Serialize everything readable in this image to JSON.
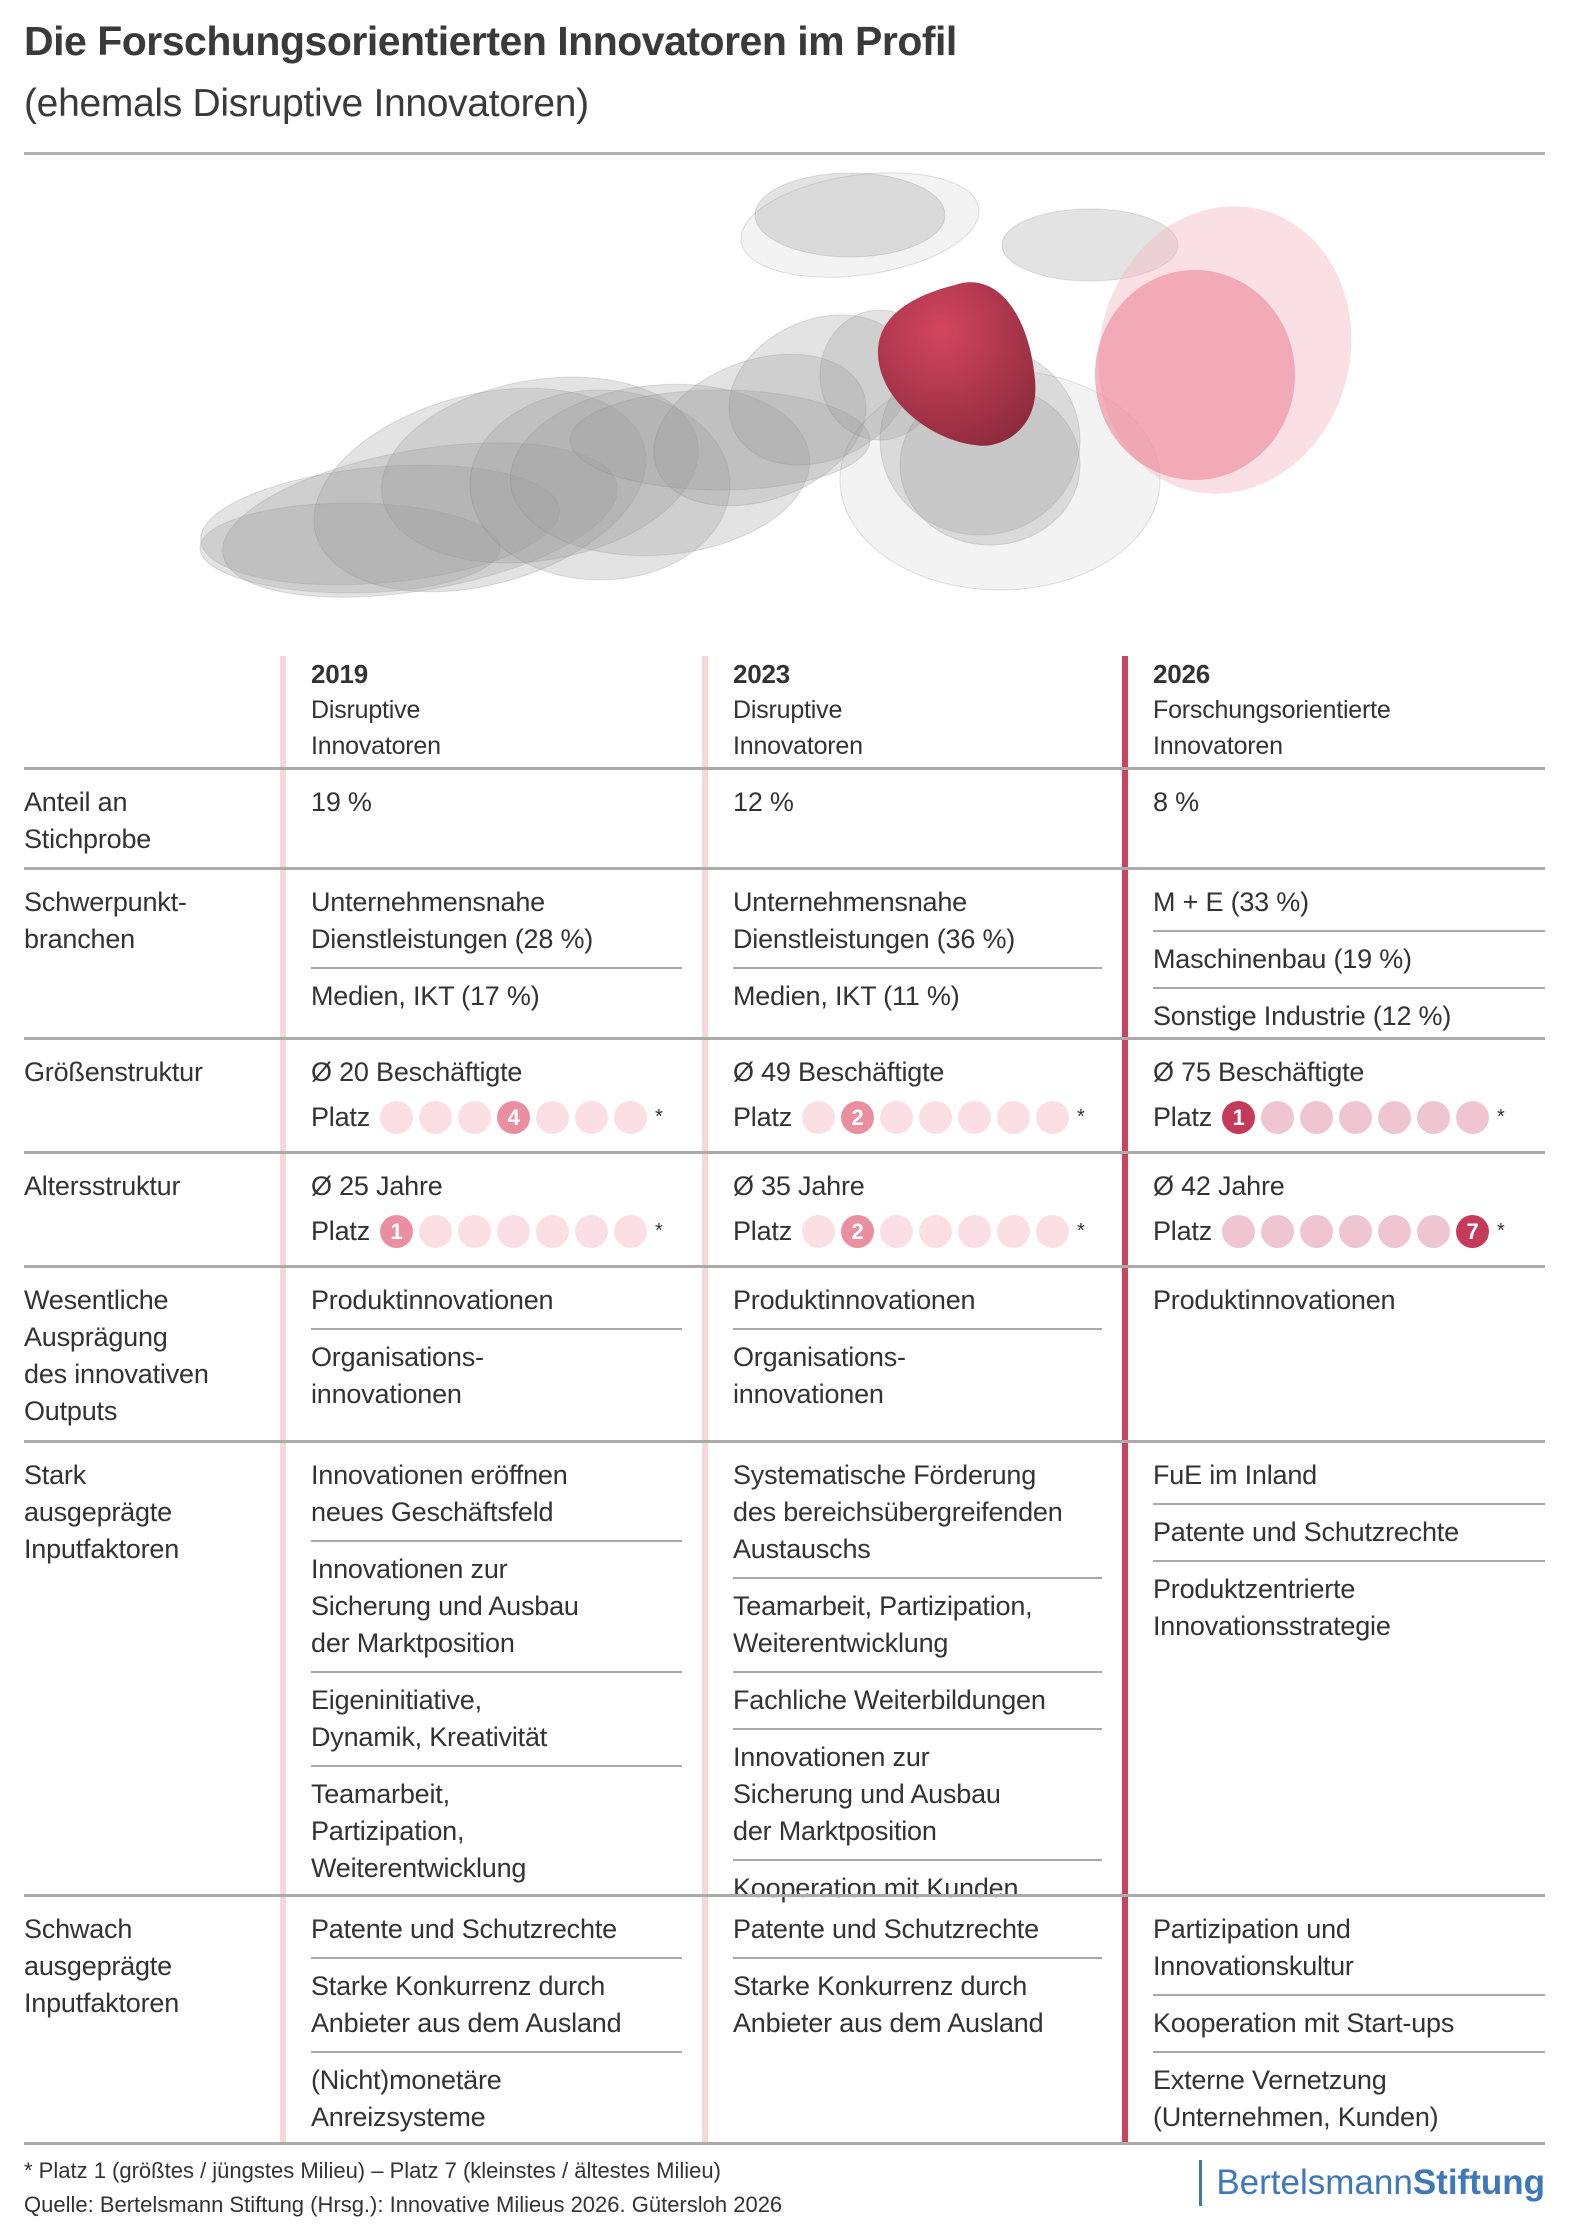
{
  "title": "Die Forschungsorientierten Innovatoren im Profil",
  "subtitle": "(ehemals Disruptive Innovatoren)",
  "colors": {
    "accent": "#c8435f",
    "light_pink": "#f9d6dc",
    "rule": "#ababab",
    "brand_blue": "#3f78b8"
  },
  "columns": [
    {
      "year": "2019",
      "name": "Disruptive\nInnovatoren"
    },
    {
      "year": "2023",
      "name": "Disruptive\nInnovatoren"
    },
    {
      "year": "2026",
      "name": "Forschungsorientierte\nInnovatoren"
    }
  ],
  "rows": [
    {
      "label": "Anteil an\nStichprobe",
      "cells": [
        {
          "items": [
            "19 %"
          ]
        },
        {
          "items": [
            "12 %"
          ]
        },
        {
          "items": [
            "8 %"
          ]
        }
      ]
    },
    {
      "label": "Schwerpunkt-\nbranchen",
      "cells": [
        {
          "items": [
            "Unternehmensnahe\nDienstleistungen (28 %)",
            "Medien, IKT (17 %)"
          ]
        },
        {
          "items": [
            "Unternehmensnahe\nDienstleistungen (36 %)",
            "Medien, IKT (11 %)"
          ]
        },
        {
          "items": [
            "M + E (33 %)",
            "Maschinenbau (19 %)",
            "Sonstige Industrie (12 %)"
          ]
        }
      ]
    },
    {
      "label": "Größenstruktur",
      "cells": [
        {
          "stat": "Ø 20 Beschäftigte",
          "platz": "Platz",
          "rank": 4,
          "total": 7,
          "asterisk": "*"
        },
        {
          "stat": "Ø 49 Beschäftigte",
          "platz": "Platz",
          "rank": 2,
          "total": 7,
          "asterisk": "*"
        },
        {
          "stat": "Ø 75 Beschäftigte",
          "platz": "Platz",
          "rank": 1,
          "total": 7,
          "asterisk": "*"
        }
      ]
    },
    {
      "label": "Altersstruktur",
      "cells": [
        {
          "stat": "Ø 25 Jahre",
          "platz": "Platz",
          "rank": 1,
          "total": 7,
          "asterisk": "*"
        },
        {
          "stat": "Ø 35 Jahre",
          "platz": "Platz",
          "rank": 2,
          "total": 7,
          "asterisk": "*"
        },
        {
          "stat": "Ø 42 Jahre",
          "platz": "Platz",
          "rank": 7,
          "total": 7,
          "asterisk": "*"
        }
      ]
    },
    {
      "label": "Wesentliche\nAusprägung\ndes innovativen\nOutputs",
      "cells": [
        {
          "items": [
            "Produktinnovationen",
            "Organisations-\ninnovationen"
          ]
        },
        {
          "items": [
            "Produktinnovationen",
            "Organisations-\ninnovationen"
          ]
        },
        {
          "items": [
            "Produktinnovationen"
          ]
        }
      ]
    },
    {
      "label": "Stark\nausgeprägte\nInputfaktoren",
      "cells": [
        {
          "items": [
            "Innovationen eröffnen\nneues Geschäftsfeld",
            "Innovationen zur\nSicherung und Ausbau\nder Marktposition",
            "Eigeninitiative,\nDynamik, Kreativität",
            "Teamarbeit,\nPartizipation,\nWeiterentwicklung"
          ]
        },
        {
          "items": [
            "Systematische Förderung\ndes bereichsübergreifenden\nAustauschs",
            "Teamarbeit, Partizipation,\nWeiterentwicklung",
            "Fachliche Weiterbildungen",
            "Innovationen zur\nSicherung und Ausbau\nder Marktposition",
            "Kooperation mit Kunden"
          ]
        },
        {
          "items": [
            "FuE im Inland",
            "Patente und Schutzrechte",
            "Produktzentrierte\nInnovationsstrategie"
          ]
        }
      ]
    },
    {
      "label": "Schwach\nausgeprägte\nInputfaktoren",
      "cells": [
        {
          "items": [
            "Patente und Schutzrechte",
            "Starke Konkurrenz durch\nAnbieter aus dem Ausland",
            "(Nicht)monetäre\nAnreizsysteme"
          ]
        },
        {
          "items": [
            "Patente und Schutzrechte",
            "Starke Konkurrenz durch\nAnbieter aus dem Ausland"
          ]
        },
        {
          "items": [
            "Partizipation und\nInnovationskultur",
            "Kooperation mit Start-ups",
            "Externe Vernetzung\n(Unternehmen, Kunden)"
          ]
        }
      ]
    }
  ],
  "footnote": "* Platz 1 (größtes / jüngstes Milieu) – Platz 7 (kleinstes / ältestes Milieu)",
  "source": "Quelle: Bertelsmann Stiftung (Hrsg.): Innovative Milieus 2026. Gütersloh 2026",
  "logo": {
    "part1": "Bertelsmann",
    "part2": "Stiftung"
  }
}
